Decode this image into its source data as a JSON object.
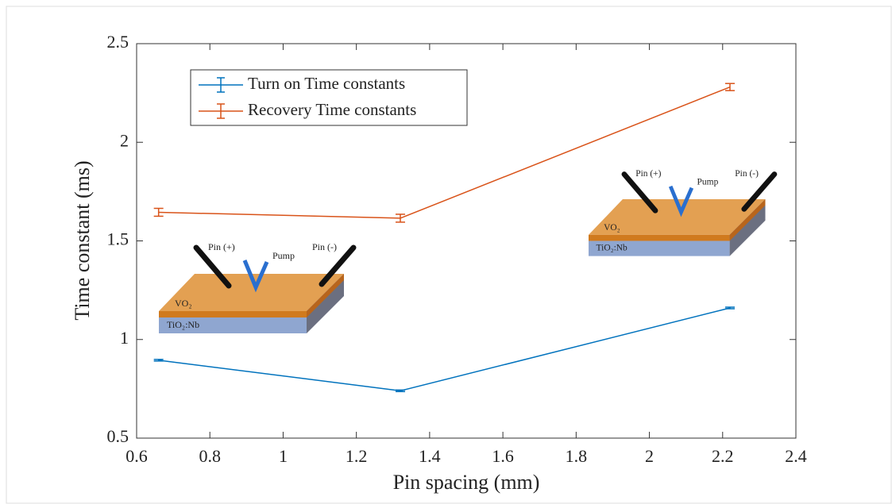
{
  "chart_data": {
    "type": "line",
    "xlabel": "Pin spacing (mm)",
    "ylabel": "Time constant (ms)",
    "xlim": [
      0.6,
      2.4
    ],
    "xticks": [
      0.6,
      0.8,
      1,
      1.2,
      1.4,
      1.6,
      1.8,
      2,
      2.2,
      2.4
    ],
    "ylim": [
      0.5,
      2.5
    ],
    "yticks": [
      0.5,
      1,
      1.5,
      2,
      2.5
    ],
    "grid": false,
    "legend": "upper left",
    "x": [
      0.66,
      1.32,
      2.22
    ],
    "series": [
      {
        "name": "Turn on Time constants",
        "color": "#0072bd",
        "values": [
          0.895,
          0.74,
          1.16
        ],
        "errors": [
          0.004,
          0.004,
          0.004
        ]
      },
      {
        "name": "Recovery Time constants",
        "color": "#d95319",
        "values": [
          1.645,
          1.615,
          2.28
        ],
        "errors": [
          0.02,
          0.02,
          0.018
        ]
      }
    ],
    "insets": [
      {
        "pin_plus": "Pin (+)",
        "pump": "Pump",
        "pin_minus": "Pin (-)",
        "film": "VO₂",
        "substrate": "TiO₂:Nb"
      },
      {
        "pin_plus": "Pin (+)",
        "pump": "Pump",
        "pin_minus": "Pin (-)",
        "film": "VO₂",
        "substrate": "TiO₂:Nb"
      }
    ]
  }
}
